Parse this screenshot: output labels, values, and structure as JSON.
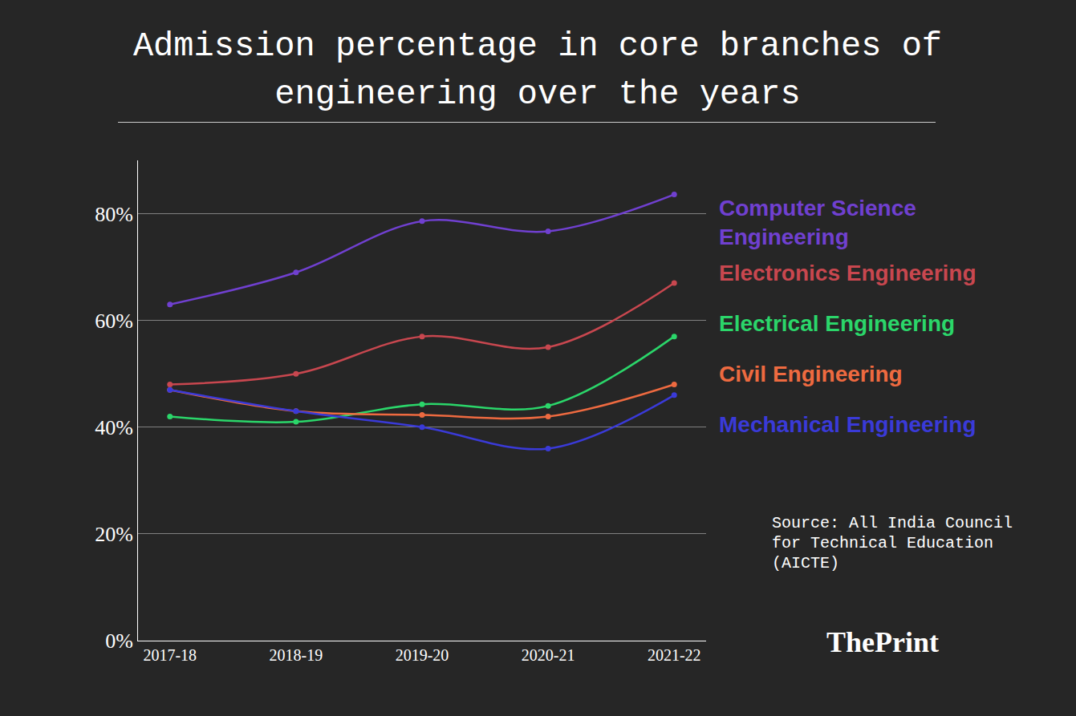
{
  "chart_data": {
    "type": "line",
    "title": "Admission percentage in core branches of engineering over the years",
    "categories": [
      "2017-18",
      "2018-19",
      "2019-20",
      "2020-21",
      "2021-22"
    ],
    "series": [
      {
        "name": "Computer Science Engineering",
        "color": "#7040d0",
        "values": [
          63,
          69,
          78.6,
          76.7,
          83.6
        ]
      },
      {
        "name": "Electronics Engineering",
        "color": "#c8474f",
        "values": [
          48,
          50,
          57,
          55,
          67
        ]
      },
      {
        "name": "Electrical Engineering",
        "color": "#2bd66a",
        "values": [
          42,
          41,
          44.3,
          44,
          57
        ]
      },
      {
        "name": "Civil Engineering",
        "color": "#ee6a40",
        "values": [
          47,
          43,
          42.3,
          42,
          48
        ]
      },
      {
        "name": "Mechanical Engineering",
        "color": "#3a3ad8",
        "values": [
          47,
          43,
          40,
          36,
          46
        ]
      }
    ],
    "ylim": [
      0,
      90
    ],
    "yticks": [
      {
        "value": 0,
        "label": "0%"
      },
      {
        "value": 20,
        "label": "20%"
      },
      {
        "value": 40,
        "label": "40%"
      },
      {
        "value": 60,
        "label": "60%"
      },
      {
        "value": 80,
        "label": "80%"
      }
    ],
    "grid": true,
    "marker": "circle",
    "annotations": [
      "Source: All India Council for Technical Education (AICTE)",
      "ThePrint"
    ]
  }
}
